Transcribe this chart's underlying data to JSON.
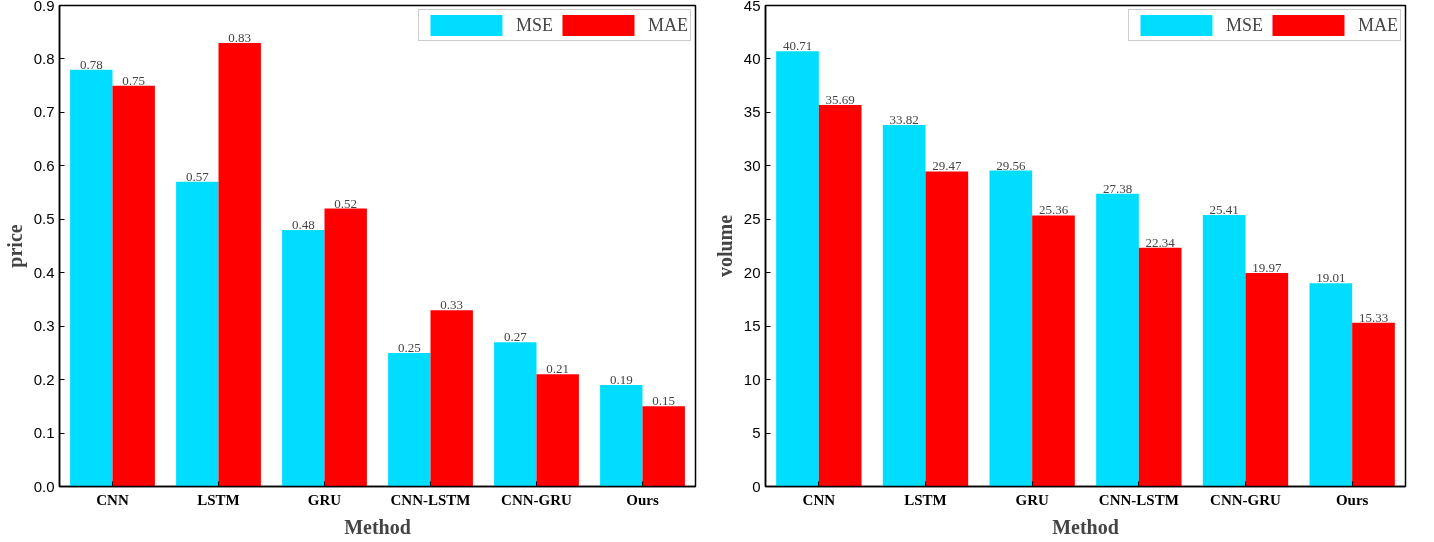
{
  "chart_data": [
    {
      "type": "bar",
      "xlabel": "Method",
      "ylabel": "price",
      "categories": [
        "CNN",
        "LSTM",
        "GRU",
        "CNN-LSTM",
        "CNN-GRU",
        "Ours"
      ],
      "series": [
        {
          "name": "MSE",
          "color": "#00ddff",
          "values": [
            0.78,
            0.57,
            0.48,
            0.25,
            0.27,
            0.19
          ]
        },
        {
          "name": "MAE",
          "color": "#ff0000",
          "values": [
            0.75,
            0.83,
            0.52,
            0.33,
            0.21,
            0.15
          ]
        }
      ],
      "ylim": [
        0,
        0.9
      ],
      "yticks": [
        {
          "value": 0,
          "label": "0.0"
        },
        0.1,
        0.2,
        0.3,
        0.4,
        0.5,
        0.6,
        0.7,
        0.8,
        0.9
      ],
      "data_labels": true,
      "legend": "top right",
      "grid": false
    },
    {
      "type": "bar",
      "xlabel": "Method",
      "ylabel": "volume",
      "categories": [
        "CNN",
        "LSTM",
        "GRU",
        "CNN-LSTM",
        "CNN-GRU",
        "Ours"
      ],
      "series": [
        {
          "name": "MSE",
          "color": "#00ddff",
          "values": [
            40.71,
            33.82,
            29.56,
            27.38,
            25.41,
            19.01
          ]
        },
        {
          "name": "MAE",
          "color": "#ff0000",
          "values": [
            35.69,
            29.47,
            25.36,
            22.34,
            19.97,
            15.33
          ]
        }
      ],
      "ylim": [
        0,
        45
      ],
      "yticks": [
        0,
        5,
        10,
        15,
        20,
        25,
        30,
        35,
        40,
        45
      ],
      "data_labels": true,
      "legend": "top right",
      "grid": false
    }
  ]
}
